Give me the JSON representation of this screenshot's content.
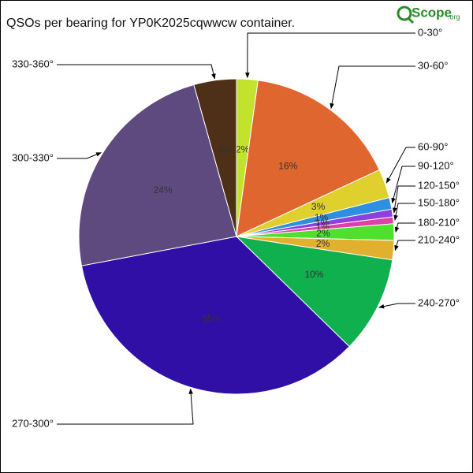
{
  "chart_data": {
    "type": "pie",
    "title": "QSOs per bearing for YP0K2025cqwwcw container.",
    "logo": {
      "text": "Scope",
      "suffix": ".org"
    },
    "categories": [
      "0-30°",
      "30-60°",
      "60-90°",
      "90-120°",
      "120-150°",
      "150-180°",
      "180-210°",
      "210-240°",
      "240-270°",
      "270-300°",
      "300-330°",
      "330-360°"
    ],
    "values": [
      2.2,
      16,
      3,
      1.2,
      0.8,
      0.7,
      1.7,
      2,
      10,
      35,
      23.8,
      4.4
    ],
    "value_labels": [
      "2%",
      "16%",
      "3%",
      "1%",
      "1%",
      "1%",
      "2%",
      "2%",
      "10%",
      "35%",
      "24%",
      "4%"
    ],
    "colors": [
      "#c2e22e",
      "#e0662f",
      "#e0d02e",
      "#2e8fe0",
      "#8f3fe0",
      "#e03fa8",
      "#4fe02e",
      "#e0b02e",
      "#10b04f",
      "#2f0fa6",
      "#5e4a7e",
      "#4e3018"
    ]
  }
}
